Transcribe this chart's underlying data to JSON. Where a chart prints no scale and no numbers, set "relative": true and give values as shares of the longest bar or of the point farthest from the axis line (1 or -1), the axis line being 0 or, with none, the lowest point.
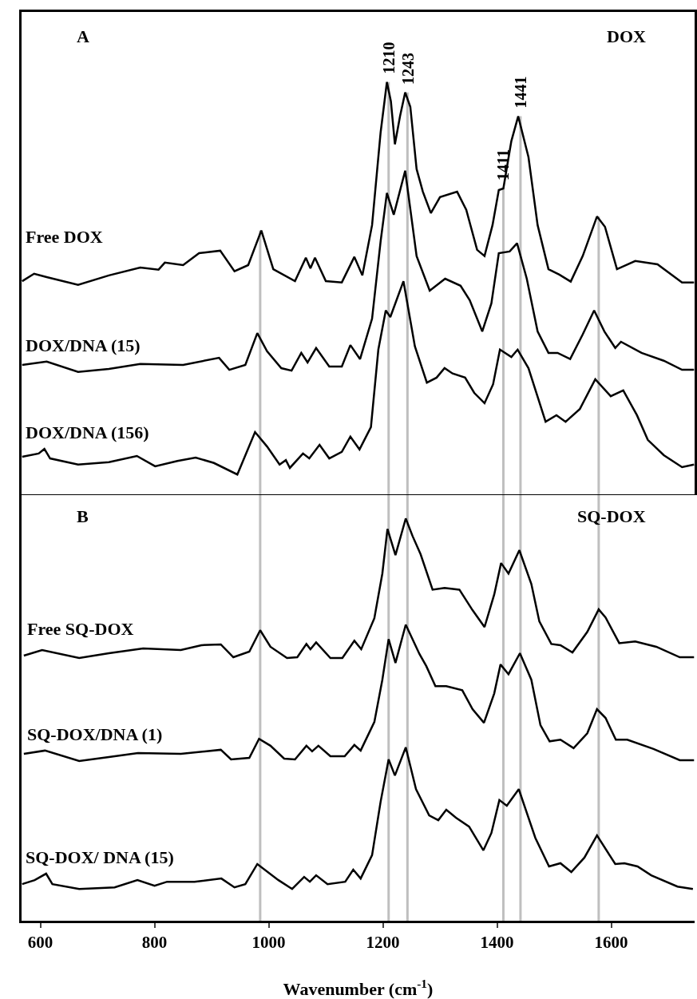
{
  "chart_data": [
    {
      "type": "line",
      "relative": true,
      "xlim": [
        567,
        1746
      ],
      "xticks": [
        600,
        800,
        1000,
        1200,
        1400,
        1600
      ],
      "tick_labels": false,
      "legend": false,
      "grid": false,
      "annotations": [
        "A",
        "DOX"
      ],
      "ref_lines": [
        {
          "axis": "x",
          "value": 985,
          "label": null,
          "color": "#bfbfbf"
        },
        {
          "axis": "x",
          "value": 1210,
          "label": "1210",
          "color": "#bfbfbf"
        },
        {
          "axis": "x",
          "value": 1243,
          "label": "1243",
          "color": "#bfbfbf"
        },
        {
          "axis": "x",
          "value": 1411,
          "label": "1411",
          "color": "#bfbfbf"
        },
        {
          "axis": "x",
          "value": 1441,
          "label": "1441",
          "color": "#bfbfbf"
        },
        {
          "axis": "x",
          "value": 1578,
          "label": null,
          "color": "#bfbfbf"
        }
      ],
      "series": [
        {
          "name": "Free DOX",
          "color": "#000000",
          "x": [
            568,
            589,
            611,
            666,
            720,
            775,
            807,
            818,
            850,
            878,
            915,
            940,
            964,
            987,
            1008,
            1046,
            1065,
            1073,
            1081,
            1100,
            1128,
            1150,
            1164,
            1181,
            1196,
            1207,
            1214,
            1221,
            1230,
            1239,
            1248,
            1259,
            1270,
            1284,
            1300,
            1330,
            1346,
            1365,
            1378,
            1392,
            1403,
            1411,
            1425,
            1437,
            1455,
            1471,
            1490,
            1509,
            1529,
            1550,
            1575,
            1589,
            1610,
            1642,
            1681,
            1724,
            1745
          ],
          "values": [
            0.517,
            0.535,
            0.527,
            0.508,
            0.531,
            0.55,
            0.545,
            0.562,
            0.556,
            0.585,
            0.591,
            0.541,
            0.556,
            0.64,
            0.546,
            0.517,
            0.574,
            0.548,
            0.574,
            0.517,
            0.514,
            0.576,
            0.531,
            0.653,
            0.878,
            1.0,
            0.953,
            0.849,
            0.917,
            0.975,
            0.94,
            0.789,
            0.734,
            0.682,
            0.721,
            0.734,
            0.69,
            0.593,
            0.578,
            0.653,
            0.738,
            0.742,
            0.857,
            0.917,
            0.818,
            0.653,
            0.546,
            0.533,
            0.516,
            0.578,
            0.674,
            0.649,
            0.546,
            0.566,
            0.558,
            0.514,
            0.514
          ]
        },
        {
          "name": "DOX/DNA (15)",
          "color": "#000000",
          "x": [
            568,
            611,
            666,
            720,
            775,
            850,
            913,
            931,
            959,
            980,
            997,
            1022,
            1040,
            1057,
            1068,
            1083,
            1106,
            1128,
            1143,
            1160,
            1181,
            1196,
            1207,
            1219,
            1239,
            1259,
            1282,
            1309,
            1336,
            1352,
            1374,
            1390,
            1403,
            1422,
            1435,
            1452,
            1471,
            1490,
            1506,
            1528,
            1550,
            1570,
            1588,
            1607,
            1617,
            1653,
            1692,
            1724,
            1745
          ],
          "values": [
            0.314,
            0.322,
            0.297,
            0.304,
            0.316,
            0.314,
            0.331,
            0.302,
            0.314,
            0.391,
            0.347,
            0.306,
            0.3,
            0.343,
            0.32,
            0.355,
            0.31,
            0.31,
            0.362,
            0.328,
            0.426,
            0.614,
            0.731,
            0.678,
            0.785,
            0.578,
            0.494,
            0.523,
            0.506,
            0.471,
            0.395,
            0.463,
            0.585,
            0.589,
            0.609,
            0.523,
            0.395,
            0.343,
            0.343,
            0.328,
            0.388,
            0.446,
            0.395,
            0.355,
            0.37,
            0.343,
            0.324,
            0.302,
            0.302
          ]
        },
        {
          "name": "DOX/DNA (156)",
          "color": "#000000",
          "x": [
            568,
            597,
            607,
            617,
            666,
            720,
            769,
            801,
            840,
            872,
            904,
            945,
            976,
            997,
            1019,
            1030,
            1037,
            1060,
            1071,
            1089,
            1106,
            1128,
            1143,
            1159,
            1179,
            1192,
            1205,
            1213,
            1236,
            1256,
            1277,
            1294,
            1308,
            1322,
            1344,
            1360,
            1378,
            1393,
            1405,
            1425,
            1436,
            1455,
            1485,
            1504,
            1520,
            1545,
            1572,
            1599,
            1621,
            1645,
            1664,
            1692,
            1724,
            1745
          ],
          "values": [
            0.091,
            0.099,
            0.11,
            0.087,
            0.072,
            0.078,
            0.093,
            0.068,
            0.081,
            0.089,
            0.076,
            0.048,
            0.151,
            0.116,
            0.072,
            0.083,
            0.064,
            0.099,
            0.087,
            0.12,
            0.087,
            0.103,
            0.14,
            0.109,
            0.163,
            0.351,
            0.446,
            0.43,
            0.517,
            0.359,
            0.271,
            0.283,
            0.306,
            0.293,
            0.283,
            0.246,
            0.221,
            0.267,
            0.351,
            0.333,
            0.351,
            0.306,
            0.176,
            0.192,
            0.176,
            0.207,
            0.279,
            0.238,
            0.252,
            0.192,
            0.132,
            0.095,
            0.066,
            0.072
          ]
        }
      ]
    },
    {
      "type": "line",
      "relative": true,
      "xlim": [
        567,
        1746
      ],
      "xticks": [
        600,
        800,
        1000,
        1200,
        1400,
        1600
      ],
      "tick_labels": "x",
      "legend": false,
      "grid": false,
      "xlabel": "Wavenumber (cm$^{-1}$)",
      "annotations": [
        "B",
        "SQ-DOX"
      ],
      "ref_lines": [
        {
          "axis": "x",
          "value": 985,
          "label": null,
          "color": "#bfbfbf"
        },
        {
          "axis": "x",
          "value": 1210,
          "label": null,
          "color": "#bfbfbf"
        },
        {
          "axis": "x",
          "value": 1243,
          "label": null,
          "color": "#bfbfbf"
        },
        {
          "axis": "x",
          "value": 1411,
          "label": null,
          "color": "#bfbfbf"
        },
        {
          "axis": "x",
          "value": 1441,
          "label": null,
          "color": "#bfbfbf"
        },
        {
          "axis": "x",
          "value": 1578,
          "label": null,
          "color": "#bfbfbf"
        }
      ],
      "series": [
        {
          "name": "Free SQ-DOX",
          "color": "#000000",
          "x": [
            571,
            603,
            668,
            720,
            780,
            846,
            882,
            916,
            938,
            966,
            985,
            1003,
            1032,
            1050,
            1066,
            1073,
            1083,
            1108,
            1129,
            1150,
            1162,
            1185,
            1199,
            1208,
            1222,
            1240,
            1252,
            1266,
            1287,
            1308,
            1334,
            1357,
            1378,
            1395,
            1407,
            1420,
            1439,
            1460,
            1474,
            1495,
            1511,
            1532,
            1558,
            1578,
            1590,
            1614,
            1642,
            1679,
            1720,
            1745
          ],
          "values": [
            0.659,
            0.673,
            0.653,
            0.665,
            0.677,
            0.673,
            0.685,
            0.687,
            0.655,
            0.669,
            0.722,
            0.681,
            0.653,
            0.655,
            0.688,
            0.675,
            0.692,
            0.653,
            0.653,
            0.696,
            0.675,
            0.752,
            0.863,
            0.974,
            0.909,
            1.0,
            0.956,
            0.911,
            0.823,
            0.827,
            0.823,
            0.772,
            0.73,
            0.811,
            0.889,
            0.863,
            0.921,
            0.837,
            0.744,
            0.688,
            0.685,
            0.667,
            0.718,
            0.774,
            0.754,
            0.69,
            0.694,
            0.681,
            0.655,
            0.655
          ]
        },
        {
          "name": "SQ-DOX/DNA (1)",
          "color": "#000000",
          "x": [
            571,
            608,
            668,
            720,
            771,
            846,
            916,
            934,
            966,
            983,
            1003,
            1027,
            1046,
            1066,
            1076,
            1087,
            1108,
            1133,
            1150,
            1161,
            1185,
            1199,
            1210,
            1222,
            1240,
            1264,
            1276,
            1292,
            1311,
            1339,
            1357,
            1377,
            1395,
            1406,
            1420,
            1440,
            1460,
            1476,
            1492,
            1511,
            1534,
            1558,
            1575,
            1590,
            1608,
            1628,
            1674,
            1720,
            1745
          ],
          "values": [
            0.415,
            0.423,
            0.397,
            0.407,
            0.417,
            0.415,
            0.425,
            0.401,
            0.405,
            0.452,
            0.435,
            0.403,
            0.401,
            0.435,
            0.421,
            0.435,
            0.409,
            0.409,
            0.437,
            0.423,
            0.494,
            0.599,
            0.7,
            0.641,
            0.736,
            0.663,
            0.633,
            0.583,
            0.583,
            0.573,
            0.526,
            0.492,
            0.565,
            0.637,
            0.613,
            0.665,
            0.599,
            0.486,
            0.446,
            0.45,
            0.429,
            0.466,
            0.526,
            0.504,
            0.45,
            0.45,
            0.427,
            0.399,
            0.399
          ]
        },
        {
          "name": "SQ-DOX/ DNA (15)",
          "color": "#000000",
          "x": [
            568,
            590,
            610,
            621,
            668,
            730,
            770,
            800,
            822,
            870,
            917,
            940,
            959,
            980,
            1017,
            1041,
            1062,
            1072,
            1083,
            1103,
            1134,
            1148,
            1161,
            1181,
            1196,
            1210,
            1221,
            1240,
            1258,
            1281,
            1297,
            1311,
            1328,
            1351,
            1376,
            1390,
            1404,
            1417,
            1438,
            1467,
            1491,
            1511,
            1530,
            1553,
            1575,
            1607,
            1623,
            1646,
            1670,
            1716,
            1743
          ],
          "values": [
            0.091,
            0.101,
            0.117,
            0.091,
            0.079,
            0.083,
            0.101,
            0.087,
            0.097,
            0.097,
            0.105,
            0.083,
            0.091,
            0.141,
            0.101,
            0.079,
            0.109,
            0.097,
            0.113,
            0.091,
            0.097,
            0.127,
            0.105,
            0.163,
            0.296,
            0.401,
            0.361,
            0.431,
            0.327,
            0.262,
            0.25,
            0.276,
            0.256,
            0.234,
            0.175,
            0.218,
            0.3,
            0.286,
            0.327,
            0.206,
            0.135,
            0.143,
            0.121,
            0.157,
            0.212,
            0.141,
            0.143,
            0.135,
            0.113,
            0.085,
            0.079
          ]
        }
      ]
    }
  ]
}
